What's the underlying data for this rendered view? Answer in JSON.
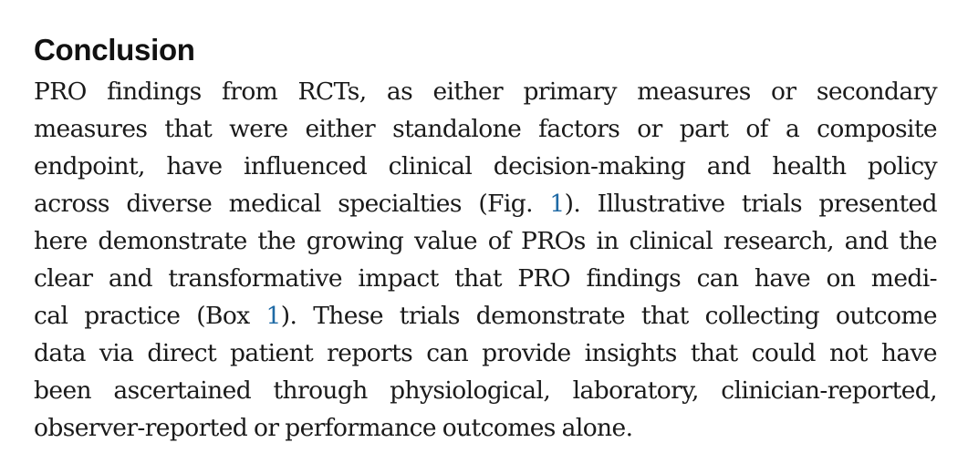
{
  "section": {
    "heading": "Conclusion",
    "lines": [
      "PRO findings from RCTs, as either primary measures or secondary",
      "measures that were either standalone factors or part of a composite",
      "endpoint, have influenced clinical decision-making and health policy",
      {
        "pre": "across diverse medical specialties (Fig. ",
        "link": "1",
        "post": "). Illustrative trials presented"
      },
      "here demonstrate the growing value of PROs in clinical research, and the",
      "clear and transformative impact that PRO findings can have on medi-",
      {
        "pre": "cal practice (Box ",
        "link": "1",
        "post": "). These trials demonstrate that collecting outcome"
      },
      "data via direct patient reports can provide insights that could not have",
      "been ascertained through physiological, laboratory, clinician-reported,",
      "observer-reported or performance outcomes alone."
    ]
  },
  "colors": {
    "link": "#1f6aa5",
    "text": "#1a1a1a"
  }
}
